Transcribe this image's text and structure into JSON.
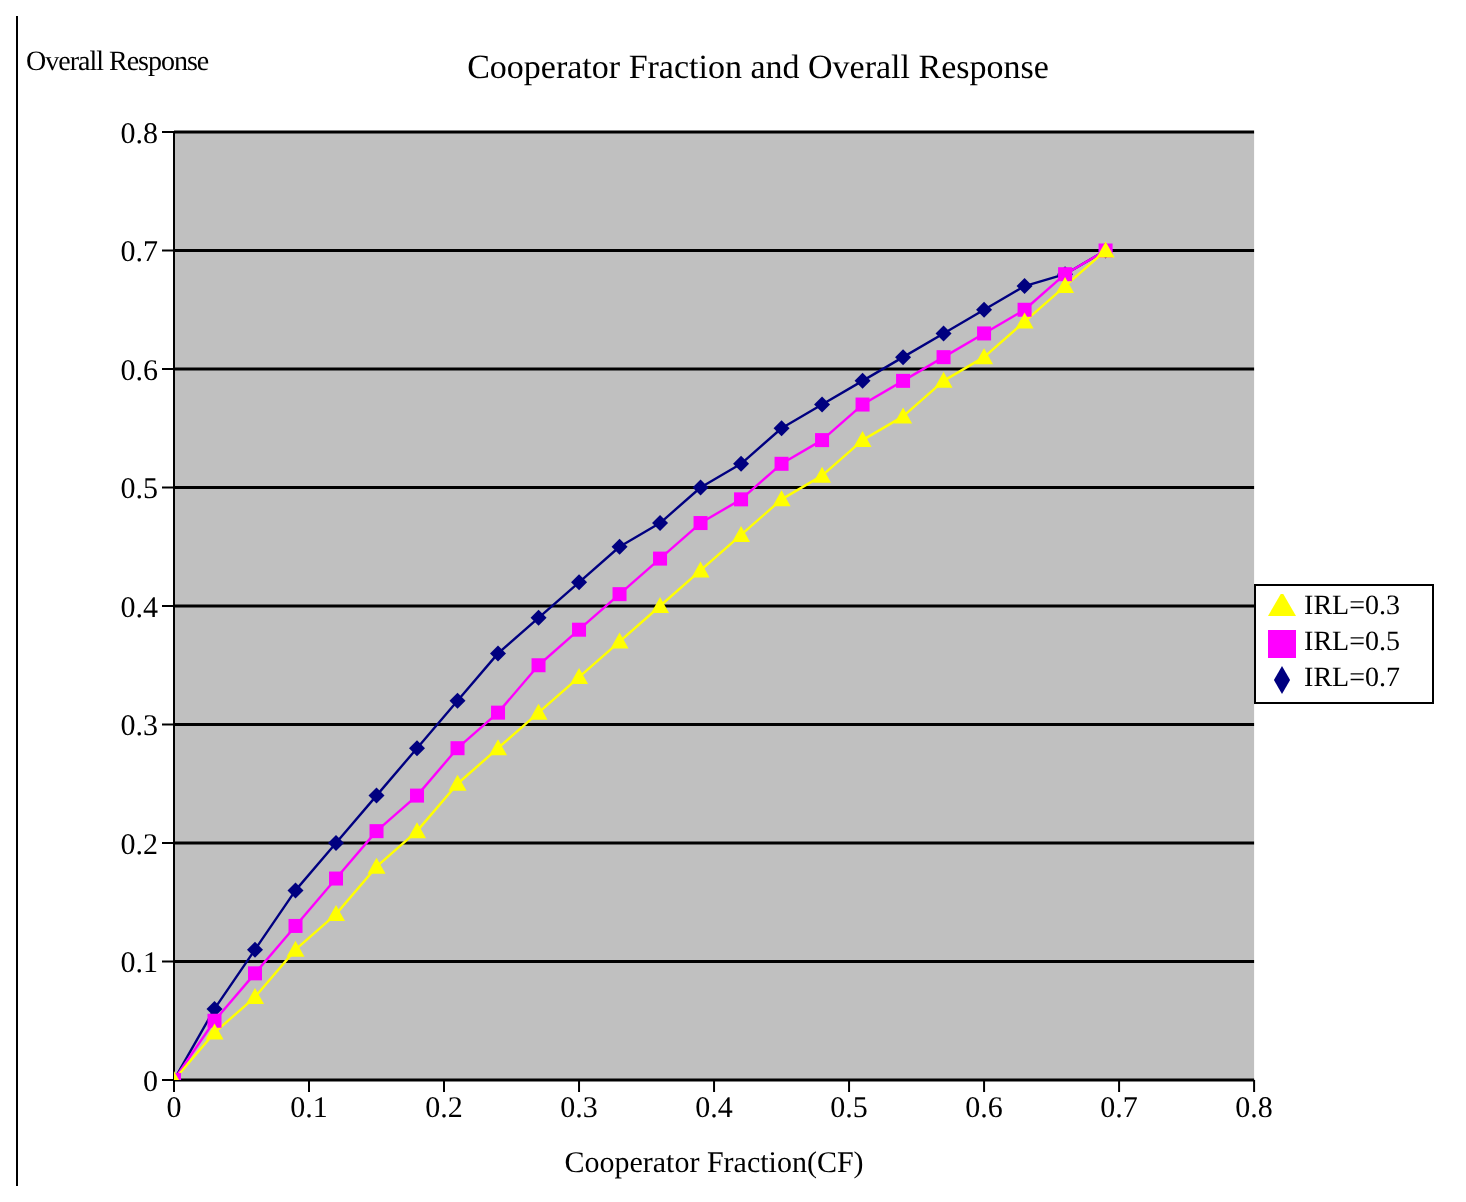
{
  "chart_data": {
    "type": "line",
    "title": "Cooperator Fraction and Overall Response",
    "xlabel": "Cooperator Fraction(CF)",
    "ylabel": "Overall Response",
    "x": [
      0,
      0.03,
      0.06,
      0.09,
      0.12,
      0.15,
      0.18,
      0.21,
      0.24,
      0.27,
      0.3,
      0.33,
      0.36,
      0.39,
      0.42,
      0.45,
      0.48,
      0.51,
      0.54,
      0.57,
      0.6,
      0.63,
      0.66,
      0.69
    ],
    "series": [
      {
        "name": "IRL=0.7",
        "color": "#000080",
        "marker": "diamond",
        "values": [
          0,
          0.06,
          0.11,
          0.16,
          0.2,
          0.24,
          0.28,
          0.32,
          0.36,
          0.39,
          0.42,
          0.45,
          0.47,
          0.5,
          0.52,
          0.55,
          0.57,
          0.59,
          0.61,
          0.63,
          0.65,
          0.67,
          0.68,
          0.7
        ]
      },
      {
        "name": "IRL=0.5",
        "color": "#ff00ff",
        "marker": "square",
        "values": [
          0,
          0.05,
          0.09,
          0.13,
          0.17,
          0.21,
          0.24,
          0.28,
          0.31,
          0.35,
          0.38,
          0.41,
          0.44,
          0.47,
          0.49,
          0.52,
          0.54,
          0.57,
          0.59,
          0.61,
          0.63,
          0.65,
          0.68,
          0.7
        ]
      },
      {
        "name": "IRL=0.3",
        "color": "#ffff00",
        "marker": "triangle",
        "values": [
          0,
          0.04,
          0.07,
          0.11,
          0.14,
          0.18,
          0.21,
          0.25,
          0.28,
          0.31,
          0.34,
          0.37,
          0.4,
          0.43,
          0.46,
          0.49,
          0.51,
          0.54,
          0.56,
          0.59,
          0.61,
          0.64,
          0.67,
          0.7
        ]
      }
    ],
    "xlim": [
      0,
      0.8
    ],
    "xticks": [
      0,
      0.1,
      0.2,
      0.3,
      0.4,
      0.5,
      0.6,
      0.7,
      0.8
    ],
    "ylim": [
      0,
      0.8
    ],
    "yticks": [
      0,
      0.1,
      0.2,
      0.3,
      0.4,
      0.5,
      0.6,
      0.7,
      0.8
    ],
    "grid": "y",
    "legend": "right"
  }
}
